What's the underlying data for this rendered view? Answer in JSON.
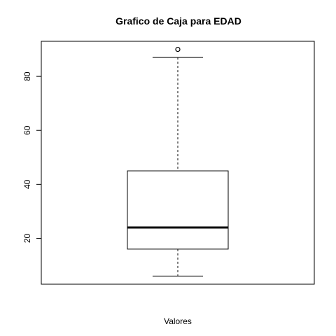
{
  "chart_data": {
    "type": "boxplot",
    "title": "Grafico de Caja para EDAD",
    "xlabel": "Valores",
    "ylabel": "",
    "ylim": [
      3,
      93
    ],
    "y_ticks": [
      20,
      40,
      60,
      80
    ],
    "grid": false,
    "legend": "none",
    "box": {
      "whisker_low": 6,
      "q1": 16,
      "median": 24,
      "q3": 45,
      "whisker_high": 87
    },
    "outliers": [
      90
    ],
    "colors": {
      "stroke": "#000000",
      "background": "#ffffff"
    }
  }
}
